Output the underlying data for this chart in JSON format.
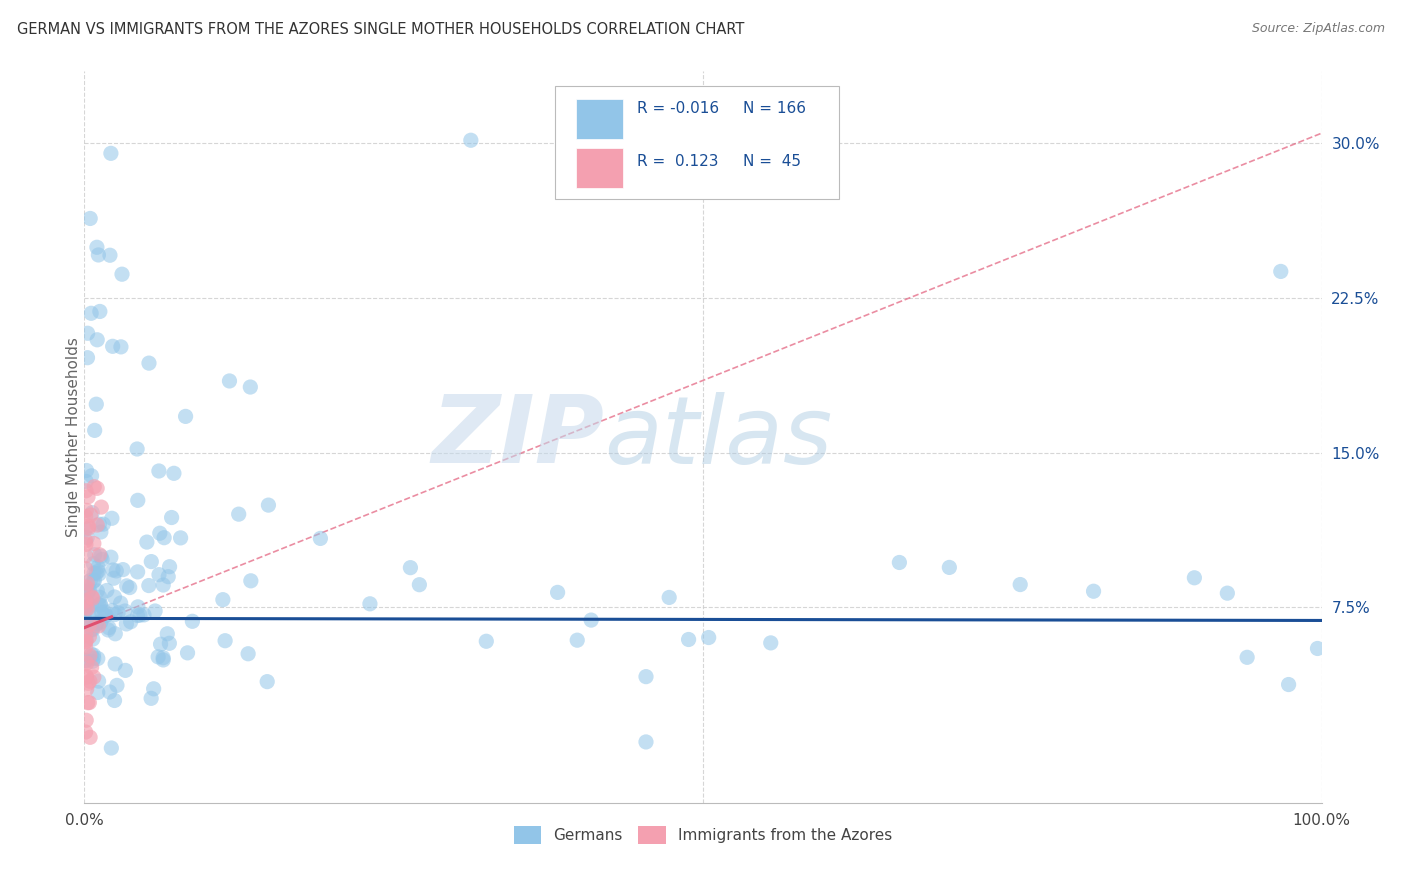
{
  "title": "GERMAN VS IMMIGRANTS FROM THE AZORES SINGLE MOTHER HOUSEHOLDS CORRELATION CHART",
  "source": "Source: ZipAtlas.com",
  "ylabel": "Single Mother Households",
  "xlim": [
    0.0,
    1.0
  ],
  "ylim": [
    -0.02,
    0.335
  ],
  "ytick_labels": [
    "7.5%",
    "15.0%",
    "22.5%",
    "30.0%"
  ],
  "ytick_positions": [
    0.075,
    0.15,
    0.225,
    0.3
  ],
  "blue_color": "#92C5E8",
  "pink_color": "#F4A0B0",
  "blue_line_color": "#1A4E96",
  "pink_line_color": "#E05070",
  "legend_blue_label": "Germans",
  "legend_pink_label": "Immigrants from the Azores",
  "R_blue": -0.016,
  "N_blue": 166,
  "R_pink": 0.123,
  "N_pink": 45,
  "watermark_zip": "ZIP",
  "watermark_atlas": "atlas",
  "background_color": "#FFFFFF",
  "grid_color": "#CCCCCC",
  "blue_intercept": 0.0695,
  "blue_slope": -0.001,
  "pink_intercept": 0.065,
  "pink_slope": 0.24
}
